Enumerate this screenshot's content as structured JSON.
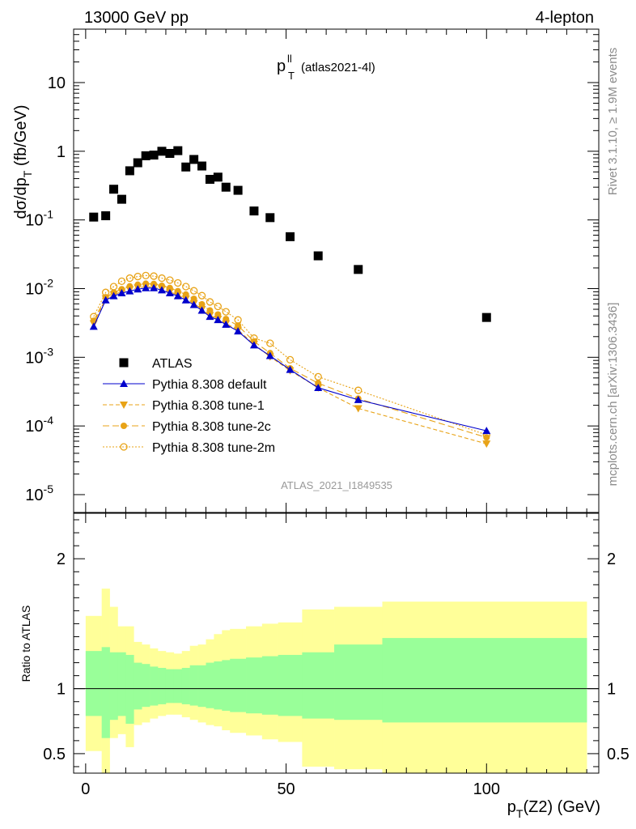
{
  "header": {
    "left": "13000 GeV pp",
    "right": "4-lepton"
  },
  "plot_title": {
    "main": "p",
    "sup": "ll",
    "sub": "T",
    "suffix": "(atlas2021-4l)"
  },
  "watermark": "ATLAS_2021_I1849535",
  "side_labels": {
    "rivet": "Rivet 3.1.10, ≥ 1.9M events",
    "mcplots": "mcplots.cern.ch [arXiv:1306.3436]"
  },
  "colors": {
    "data": "#000000",
    "default": "#0000cc",
    "tune": "#e8a317",
    "band_inner": "#99ff99",
    "band_outer": "#ffff99"
  },
  "chart_data": [
    {
      "type": "scatter",
      "panel": "main",
      "ylabel": "dσ/dp_T (fb/GeV)",
      "yscale": "log",
      "ylim": [
        5.5e-06,
        60
      ],
      "xlim": [
        -3,
        128
      ],
      "y_tick_labels": [
        "10",
        "1",
        "10^-1",
        "10^-2",
        "10^-3",
        "10^-4",
        "10^-5"
      ],
      "legend_position": "lower-left",
      "series": [
        {
          "name": "ATLAS",
          "style": "square",
          "x": [
            2,
            5,
            7,
            9,
            11,
            13,
            15,
            17,
            19,
            21,
            23,
            25,
            27,
            29,
            31,
            33,
            35,
            38,
            42,
            46,
            51,
            58,
            68,
            100
          ],
          "y": [
            0.11,
            0.115,
            0.28,
            0.2,
            0.52,
            0.68,
            0.86,
            0.88,
            1.0,
            0.93,
            1.02,
            0.59,
            0.76,
            0.61,
            0.39,
            0.42,
            0.3,
            0.27,
            0.135,
            0.108,
            0.057,
            0.03,
            0.019,
            0.0038
          ]
        },
        {
          "name": "Pythia 8.308 default",
          "style": "triangle-up-solid",
          "x": [
            2,
            5,
            7,
            9,
            11,
            13,
            15,
            17,
            19,
            21,
            23,
            25,
            27,
            29,
            31,
            33,
            35,
            38,
            42,
            46,
            51,
            58,
            68,
            100
          ],
          "y": [
            0.0028,
            0.0068,
            0.0078,
            0.0086,
            0.0092,
            0.0098,
            0.0102,
            0.0102,
            0.0095,
            0.0086,
            0.0078,
            0.0068,
            0.0058,
            0.0048,
            0.0039,
            0.0035,
            0.003,
            0.0024,
            0.0015,
            0.00105,
            0.00066,
            0.00036,
            0.00024,
            8.5e-05
          ]
        },
        {
          "name": "Pythia 8.308 tune-1",
          "style": "triangle-down-solid",
          "x": [
            2,
            5,
            7,
            9,
            11,
            13,
            15,
            17,
            19,
            21,
            23,
            25,
            27,
            29,
            31,
            33,
            35,
            38,
            42,
            46,
            51,
            58,
            68,
            100
          ],
          "y": [
            0.0031,
            0.0072,
            0.0082,
            0.009,
            0.0097,
            0.0103,
            0.0107,
            0.0106,
            0.0099,
            0.009,
            0.0081,
            0.0071,
            0.0061,
            0.005,
            0.0041,
            0.0036,
            0.0031,
            0.0025,
            0.00155,
            0.00102,
            0.00064,
            0.00036,
            0.00018,
            5.5e-05
          ]
        },
        {
          "name": "Pythia 8.308 tune-2c",
          "style": "circle-solid",
          "x": [
            2,
            5,
            7,
            9,
            11,
            13,
            15,
            17,
            19,
            21,
            23,
            25,
            27,
            29,
            31,
            33,
            35,
            38,
            42,
            46,
            51,
            58,
            68,
            100
          ],
          "y": [
            0.0034,
            0.0075,
            0.0088,
            0.0098,
            0.0108,
            0.0114,
            0.0118,
            0.0117,
            0.011,
            0.0102,
            0.0092,
            0.0082,
            0.0071,
            0.0059,
            0.0048,
            0.0042,
            0.0036,
            0.0029,
            0.0017,
            0.00115,
            0.00069,
            0.00042,
            0.00025,
            6.8e-05
          ]
        },
        {
          "name": "Pythia 8.308 tune-2m",
          "style": "circle-open",
          "x": [
            2,
            5,
            7,
            9,
            11,
            13,
            15,
            17,
            19,
            21,
            23,
            25,
            27,
            29,
            31,
            33,
            35,
            38,
            42,
            46,
            51,
            58,
            68,
            100
          ],
          "y": [
            0.0039,
            0.0088,
            0.0107,
            0.0128,
            0.0142,
            0.015,
            0.0155,
            0.0152,
            0.0142,
            0.0133,
            0.0121,
            0.0107,
            0.0093,
            0.0079,
            0.0064,
            0.0055,
            0.0046,
            0.0035,
            0.0019,
            0.0016,
            0.00092,
            0.00052,
            0.00033,
            7.4e-05
          ]
        }
      ]
    },
    {
      "type": "area",
      "panel": "ratio",
      "ylabel": "Ratio to ATLAS",
      "xlabel": "p_T(Z2) (GeV)",
      "ylim": [
        0.35,
        2.35
      ],
      "xlim": [
        -3,
        128
      ],
      "x_ticks": [
        0,
        50,
        100
      ],
      "y_tick_labels": [
        "0.5",
        "1",
        "2"
      ],
      "bin_edges": [
        0,
        4,
        6,
        8,
        10,
        12,
        14,
        16,
        18,
        20,
        22,
        24,
        26,
        28,
        30,
        32,
        34,
        36,
        40,
        44,
        48,
        54,
        62,
        74,
        125
      ],
      "band_inner": {
        "lo": [
          0.79,
          0.62,
          0.76,
          0.79,
          0.73,
          0.84,
          0.86,
          0.87,
          0.88,
          0.89,
          0.89,
          0.88,
          0.87,
          0.86,
          0.85,
          0.84,
          0.83,
          0.82,
          0.81,
          0.8,
          0.79,
          0.77,
          0.76,
          0.74
        ],
        "hi": [
          1.29,
          1.32,
          1.28,
          1.28,
          1.26,
          1.2,
          1.19,
          1.17,
          1.16,
          1.15,
          1.15,
          1.16,
          1.18,
          1.18,
          1.2,
          1.21,
          1.22,
          1.23,
          1.24,
          1.25,
          1.26,
          1.28,
          1.34,
          1.39
        ]
      },
      "band_outer": {
        "lo": [
          0.52,
          0.3,
          0.62,
          0.65,
          0.55,
          0.72,
          0.74,
          0.77,
          0.79,
          0.8,
          0.8,
          0.78,
          0.76,
          0.74,
          0.72,
          0.71,
          0.68,
          0.66,
          0.64,
          0.61,
          0.59,
          0.4,
          0.38,
          0.35
        ],
        "hi": [
          1.56,
          1.77,
          1.63,
          1.48,
          1.48,
          1.36,
          1.34,
          1.31,
          1.29,
          1.28,
          1.27,
          1.29,
          1.33,
          1.34,
          1.38,
          1.42,
          1.45,
          1.46,
          1.48,
          1.5,
          1.51,
          1.61,
          1.63,
          1.67
        ]
      },
      "reference_line": 1
    }
  ]
}
